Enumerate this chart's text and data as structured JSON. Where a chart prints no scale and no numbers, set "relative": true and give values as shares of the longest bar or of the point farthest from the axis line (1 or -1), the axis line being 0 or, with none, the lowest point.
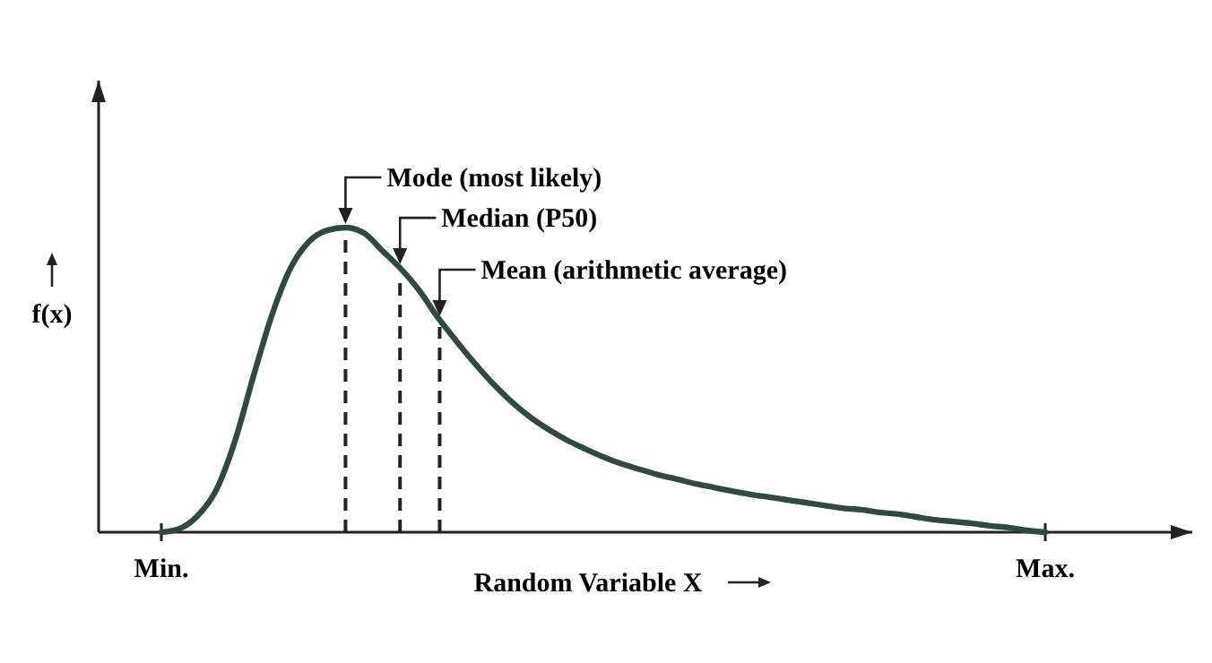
{
  "chart_data": {
    "type": "line",
    "relative": true,
    "xlabel": "Random Variable X",
    "ylabel": "f(x)",
    "categories": [
      "Min.",
      null,
      null,
      null,
      null,
      null,
      null,
      null,
      null,
      null,
      null,
      null,
      null,
      null,
      null,
      null,
      null,
      null,
      null,
      null,
      null,
      null,
      null,
      null,
      null,
      null,
      null,
      null,
      null,
      null,
      null,
      null,
      null,
      null,
      null,
      null,
      null,
      null,
      null,
      null,
      null,
      null,
      null,
      null,
      null,
      null,
      null,
      null,
      "Max."
    ],
    "series": [
      {
        "color": "#2f4a3f",
        "values": [
          0,
          0.012,
          0.056,
          0.141,
          0.3,
          0.512,
          0.712,
          0.865,
          0.953,
          0.991,
          1,
          0.982,
          0.924,
          0.865,
          0.794,
          0.706,
          0.629,
          0.556,
          0.488,
          0.429,
          0.379,
          0.338,
          0.303,
          0.274,
          0.247,
          0.224,
          0.206,
          0.188,
          0.174,
          0.159,
          0.147,
          0.135,
          0.124,
          0.115,
          0.106,
          0.097,
          0.088,
          0.079,
          0.074,
          0.065,
          0.059,
          0.05,
          0.041,
          0.035,
          0.029,
          0.021,
          0.015,
          0.006,
          0
        ]
      }
    ],
    "annotations": [
      "Mode (most likely)",
      "Median (P50)",
      "Mean (arithmetic average)"
    ],
    "marker": "none",
    "line_style": "solid"
  }
}
